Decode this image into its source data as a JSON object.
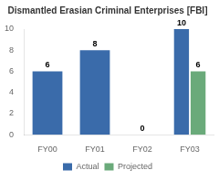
{
  "chart_data": {
    "type": "bar",
    "title": "Dismantled Erasian Criminal Enterprises [FBI]",
    "categories": [
      "FY00",
      "FY01",
      "FY02",
      "FY03"
    ],
    "series": [
      {
        "name": "Actual",
        "color": "#3a6baa",
        "values": [
          6,
          8,
          0,
          10
        ]
      },
      {
        "name": "Projected",
        "color": "#6aaa7a",
        "values": [
          null,
          null,
          null,
          6
        ]
      }
    ],
    "ylim": [
      0,
      10
    ],
    "yticks": [
      0,
      2,
      4,
      6,
      8,
      10
    ],
    "grid": false,
    "legend": "bottom",
    "data_labels": true
  }
}
